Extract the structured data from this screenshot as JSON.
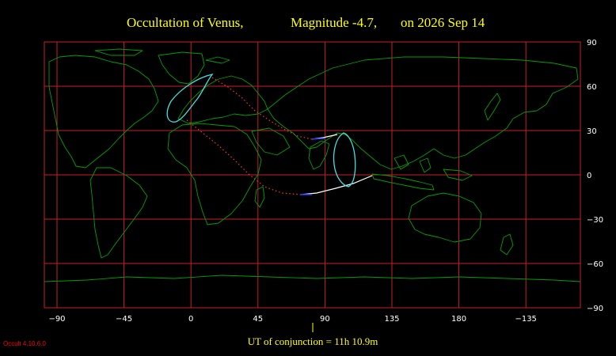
{
  "title": {
    "object": "Occultation  of  Venus,",
    "magnitude": "Magnitude -4.7,",
    "date": "on  2026 Sep 14"
  },
  "map": {
    "grid_color": "#c81e28",
    "land_color": "#00a000",
    "y_ticks": [
      "90",
      "60",
      "30",
      "0",
      "−30",
      "−60",
      "−90"
    ],
    "x_ticks": [
      "−90",
      "−45",
      "0",
      "45",
      "90",
      "135",
      "180",
      "−135"
    ]
  },
  "occultation_paths": {
    "limit_color": "#ff3030",
    "visible_line_color": "#ffffff",
    "sun_limit_color": "#40e0e0",
    "central_color": "#2030ff"
  },
  "footer": {
    "conjunction_label": "UT of conjunction = 11h 10.9m"
  },
  "version": "Occult 4.10.6.0"
}
